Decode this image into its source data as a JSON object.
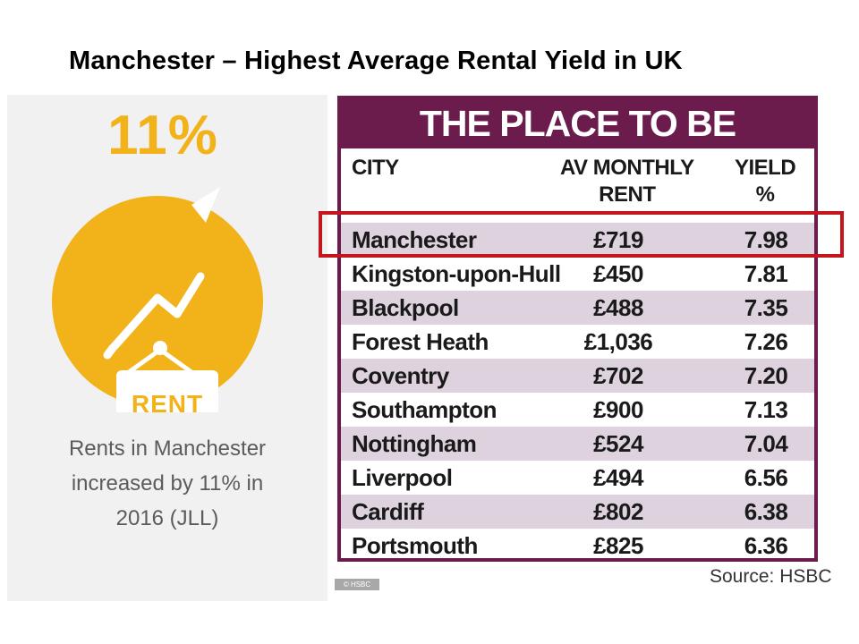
{
  "page": {
    "title": "Manchester – Highest Average Rental Yield in UK"
  },
  "infographic": {
    "percent": "11%",
    "sign_text": "RENT",
    "caption_lines": [
      "Rents in Manchester",
      "increased by 11% in",
      "2016 (JLL)"
    ],
    "copyright": "© HSBC",
    "colors": {
      "accent": "#f2b21a",
      "panel": "#f1f1f1"
    }
  },
  "chart_data": {
    "type": "table",
    "title": "THE PLACE TO BE",
    "columns": [
      "CITY",
      "AV MONTHLY RENT",
      "YIELD %"
    ],
    "column_header_lines": {
      "rent": [
        "AV MONTHLY",
        "RENT"
      ],
      "yield": [
        "YIELD",
        "%"
      ]
    },
    "rows": [
      {
        "city": "Manchester",
        "rent": "£719",
        "yield": "7.98"
      },
      {
        "city": "Kingston-upon-Hull",
        "rent": "£450",
        "yield": "7.81"
      },
      {
        "city": "Blackpool",
        "rent": "£488",
        "yield": "7.35"
      },
      {
        "city": "Forest Heath",
        "rent": "£1,036",
        "yield": "7.26"
      },
      {
        "city": "Coventry",
        "rent": "£702",
        "yield": "7.20"
      },
      {
        "city": "Southampton",
        "rent": "£900",
        "yield": "7.13"
      },
      {
        "city": "Nottingham",
        "rent": "£524",
        "yield": "7.04"
      },
      {
        "city": "Liverpool",
        "rent": "£494",
        "yield": "6.56"
      },
      {
        "city": "Cardiff",
        "rent": "£802",
        "yield": "6.38"
      },
      {
        "city": "Portsmouth",
        "rent": "£825",
        "yield": "6.36"
      }
    ],
    "highlighted_row": "Manchester",
    "source": "Source: HSBC",
    "colors": {
      "frame": "#6b1c4c",
      "shade": "#ddd2de",
      "highlight": "#c4161c"
    }
  }
}
